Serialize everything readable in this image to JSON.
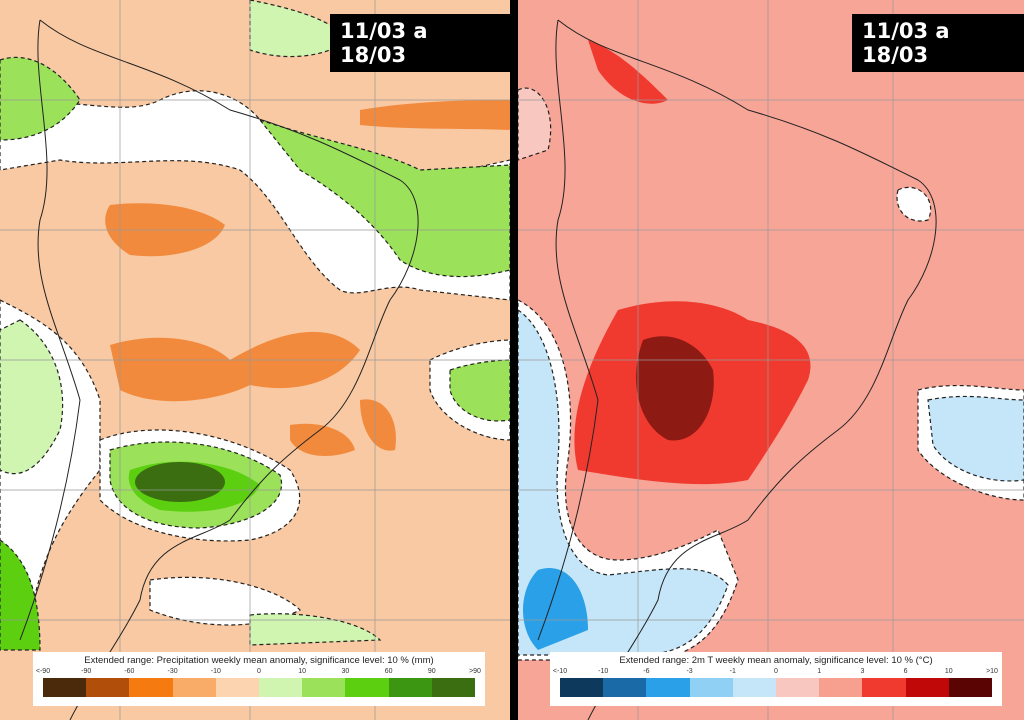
{
  "panels": [
    {
      "badge": "11/03 a 18/03",
      "legend": {
        "title": "Extended range: Precipitation weekly mean anomaly, significance level: 10 % (mm)",
        "ticks": [
          "<-90",
          "-90",
          "-60",
          "-30",
          "-10",
          "0",
          "10",
          "30",
          "60",
          "90",
          ">90"
        ],
        "colors": [
          "#4a2a0a",
          "#b04e0a",
          "#f57a10",
          "#f8ac68",
          "#fcd4b0",
          "#cff5b0",
          "#9be25a",
          "#5cd010",
          "#3c9612",
          "#3a6e10"
        ]
      }
    },
    {
      "badge": "11/03 a 18/03",
      "legend": {
        "title": "Extended range: 2m T weekly mean anomaly, significance level: 10 % (°C)",
        "ticks": [
          "<-10",
          "-10",
          "-6",
          "-3",
          "-1",
          "0",
          "1",
          "3",
          "6",
          "10",
          ">10"
        ],
        "colors": [
          "#0d3a5c",
          "#1a6aa8",
          "#2aa0e8",
          "#90d0f4",
          "#c4e6f8",
          "#f8c8c0",
          "#f8a090",
          "#f03a30",
          "#c00808",
          "#5a0404"
        ]
      }
    }
  ]
}
